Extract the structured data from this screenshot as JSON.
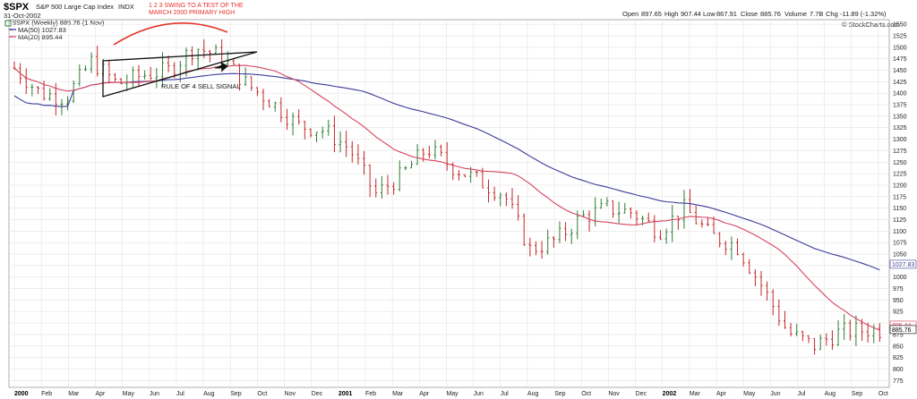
{
  "header": {
    "symbol": "$SPX",
    "name": "S&P 500 Large Cap Index",
    "exchange": "INDX",
    "date": "31-Oct-2002",
    "legend_price": "$SPX (Weekly) 885.76 (1 Nov)",
    "legend_ma50": "MA(50) 1027.83",
    "legend_ma20": "MA(20) 895.44",
    "ohlc_open_label": "Open",
    "ohlc_open": "897.65",
    "ohlc_high_label": "High",
    "ohlc_high": "907.44",
    "ohlc_low_label": "Low",
    "ohlc_low": "867.91",
    "ohlc_close_label": "Close",
    "ohlc_close": "885.76",
    "ohlc_volume_label": "Volume",
    "ohlc_volume": "7.7B",
    "ohlc_chg_label": "Chg",
    "ohlc_chg": "-11.89 (-1.32%)",
    "watermark": "© StockCharts.com"
  },
  "annotations": {
    "swing_line1": "1 2 3 SWING TO A TEST OF THE",
    "swing_line2": "MARCH 2000 PRIMARY HIGH",
    "rule_of_4": "RULE OF 4 SELL SIGNAL"
  },
  "colors": {
    "up_bar": "#2e7d32",
    "down_bar": "#c62828",
    "ma50": "#3b3b9a",
    "ma20": "#d6445e",
    "annotation_red": "#e5332a",
    "grid": "#e4e4e4"
  },
  "chart_data": {
    "type": "ohlc",
    "ylim": [
      760,
      1560
    ],
    "y_ticks": [
      775,
      800,
      825,
      850,
      875,
      900,
      925,
      950,
      975,
      1000,
      1025,
      1050,
      1075,
      1100,
      1125,
      1150,
      1175,
      1200,
      1225,
      1250,
      1275,
      1300,
      1325,
      1350,
      1375,
      1400,
      1425,
      1450,
      1475,
      1500,
      1525,
      1550
    ],
    "x_labels": [
      {
        "label": "2000",
        "year": true
      },
      {
        "label": "Feb"
      },
      {
        "label": "Mar"
      },
      {
        "label": "Apr"
      },
      {
        "label": "May"
      },
      {
        "label": "Jun"
      },
      {
        "label": "Jul"
      },
      {
        "label": "Aug"
      },
      {
        "label": "Sep"
      },
      {
        "label": "Oct"
      },
      {
        "label": "Nov"
      },
      {
        "label": "Dec"
      },
      {
        "label": "2001",
        "year": true
      },
      {
        "label": "Feb"
      },
      {
        "label": "Mar"
      },
      {
        "label": "Apr"
      },
      {
        "label": "May"
      },
      {
        "label": "Jun"
      },
      {
        "label": "Jul"
      },
      {
        "label": "Aug"
      },
      {
        "label": "Sep"
      },
      {
        "label": "Oct"
      },
      {
        "label": "Nov"
      },
      {
        "label": "Dec"
      },
      {
        "label": "2002",
        "year": true
      },
      {
        "label": "Mar"
      },
      {
        "label": "Apr"
      },
      {
        "label": "May"
      },
      {
        "label": "Jun"
      },
      {
        "label": "Jul"
      },
      {
        "label": "Aug"
      },
      {
        "label": "Sep"
      },
      {
        "label": "Oct"
      }
    ],
    "series": [
      {
        "name": "$SPX (Weekly)",
        "values_by_month": [
          1455,
          1400,
          1390,
          1470,
          1420,
          1440,
          1450,
          1500,
          1480,
          1420,
          1380,
          1330,
          1320,
          1280,
          1180,
          1220,
          1280,
          1240,
          1210,
          1180,
          1060,
          1080,
          1130,
          1150,
          1140,
          1100,
          1150,
          1090,
          1070,
          980,
          880,
          850,
          880,
          885
        ]
      },
      {
        "name": "MA(50)",
        "last": 1027.83
      },
      {
        "name": "MA(20)",
        "last": 895.44
      }
    ],
    "last_labels": {
      "ma50": "1027.83",
      "ma20": "895.44",
      "close": "885.76"
    }
  }
}
